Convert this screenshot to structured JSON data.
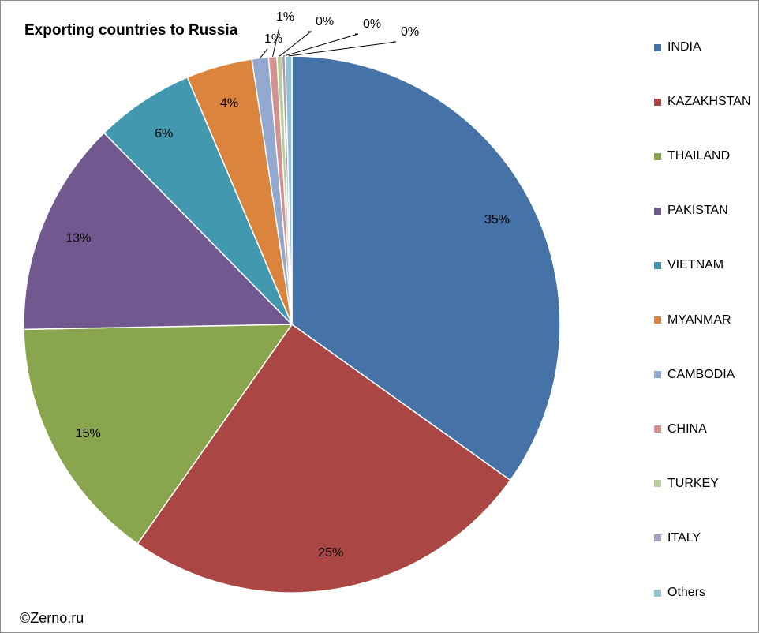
{
  "chart_data": {
    "type": "pie",
    "title": "Exporting countries to Russia",
    "categories": [
      "INDIA",
      "KAZAKHSTAN",
      "THAILAND",
      "PAKISTAN",
      "VIETNAM",
      "MYANMAR",
      "CAMBODIA",
      "CHINA",
      "TURKEY",
      "ITALY",
      "Others"
    ],
    "values": [
      35,
      25,
      15,
      13,
      6,
      4,
      1,
      0.5,
      0.3,
      0.2,
      0.4
    ],
    "data_labels": [
      "35%",
      "25%",
      "15%",
      "13%",
      "6%",
      "4%",
      "1%",
      "1%",
      "0%",
      "0%",
      "0%"
    ],
    "colors": [
      "#4572A7",
      "#AA4643",
      "#89A54E",
      "#71588F",
      "#4198AF",
      "#DB843D",
      "#93A9CF",
      "#D19392",
      "#B9CD96",
      "#A99BBD",
      "#92C3D4"
    ],
    "legend_position": "right"
  },
  "footer": {
    "copyright": "©Zerno.ru"
  }
}
